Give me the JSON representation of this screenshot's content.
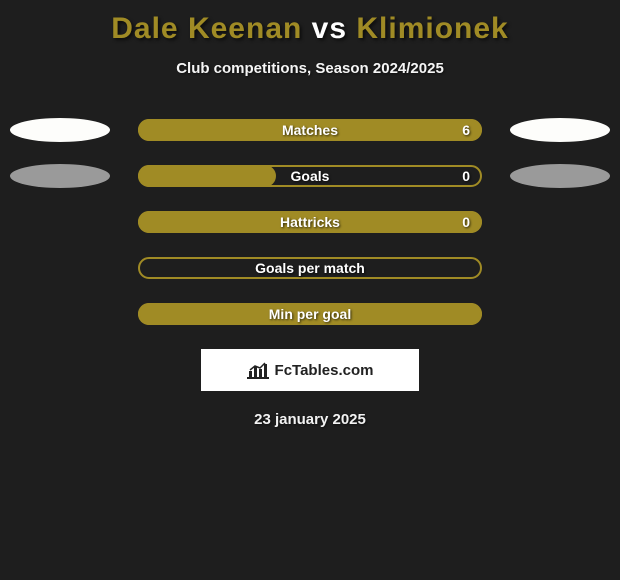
{
  "type": "infographic",
  "background_color": "#1e1e1e",
  "title": {
    "prefix": "Dale Keenan",
    "mid": " vs ",
    "suffix": "Klimionek",
    "prefix_color": "#a08b25",
    "mid_color": "#ffffff",
    "suffix_color": "#a08b25",
    "fontsize": 30
  },
  "subtitle": "Club competitions, Season 2024/2025",
  "rows": [
    {
      "label": "Matches",
      "value_right": "6",
      "fill_pct": 100,
      "fill_color": "#a08b25",
      "outline_color": "#a08b25",
      "left_ellipse": "white",
      "right_ellipse": "white"
    },
    {
      "label": "Goals",
      "value_right": "0",
      "fill_pct": 40,
      "fill_color": "#a08b25",
      "outline_color": "#a08b25",
      "left_ellipse": "gray",
      "right_ellipse": "gray"
    },
    {
      "label": "Hattricks",
      "value_right": "0",
      "fill_pct": 100,
      "fill_color": "#a08b25",
      "outline_color": "#a08b25",
      "left_ellipse": "none",
      "right_ellipse": "none"
    },
    {
      "label": "Goals per match",
      "value_right": "",
      "fill_pct": 0,
      "fill_color": "#a08b25",
      "outline_color": "#a08b25",
      "left_ellipse": "none",
      "right_ellipse": "none"
    },
    {
      "label": "Min per goal",
      "value_right": "",
      "fill_pct": 100,
      "fill_color": "#a08b25",
      "outline_color": "#a08b25",
      "left_ellipse": "none",
      "right_ellipse": "none"
    }
  ],
  "footer": {
    "brand": "FcTables.com",
    "date": "23 january 2025"
  }
}
